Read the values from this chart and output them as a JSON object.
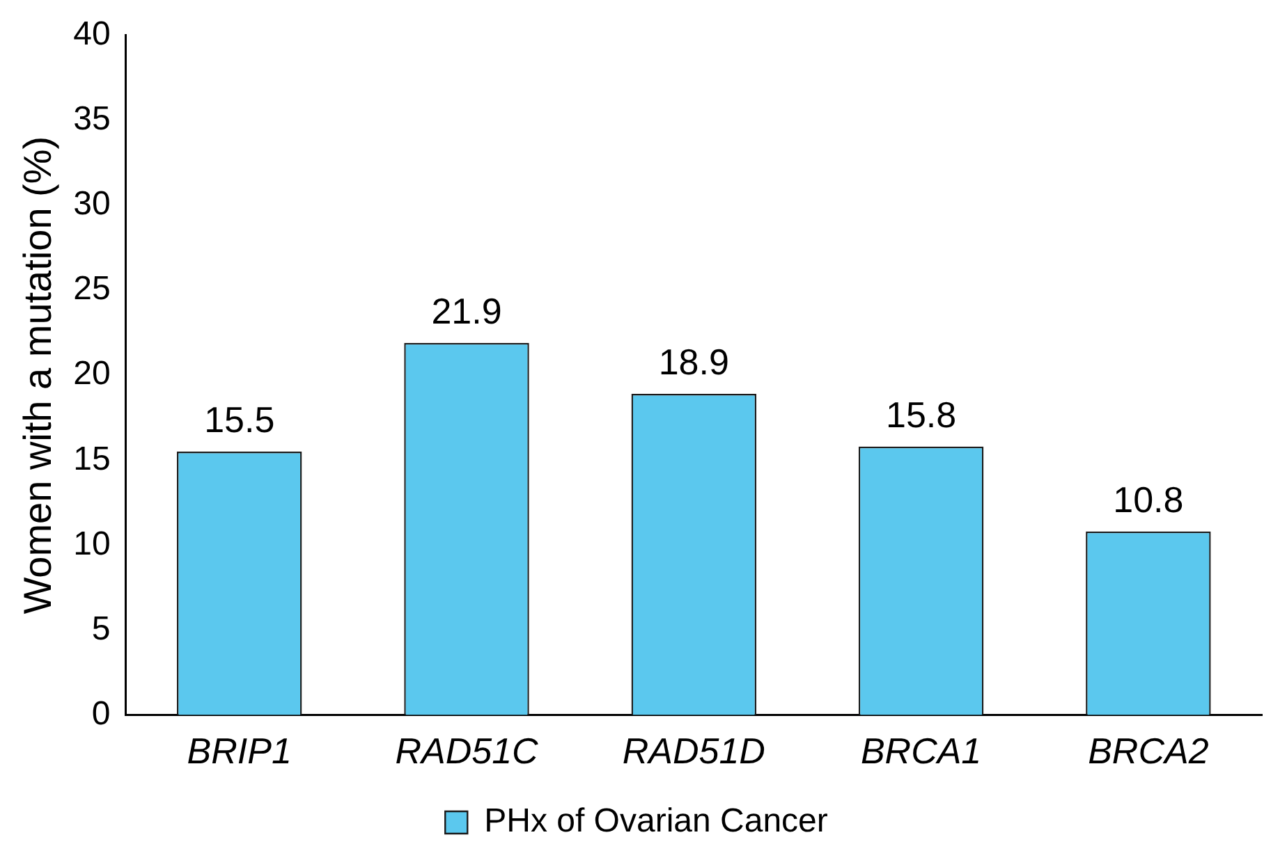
{
  "chart_data": {
    "type": "bar",
    "ylabel": "Women with a mutation (%)",
    "categories": [
      "BRIP1",
      "RAD51C",
      "RAD51D",
      "BRCA1",
      "BRCA2"
    ],
    "series": [
      {
        "name": "PHx of Ovarian Cancer",
        "color": "#5bc8ee",
        "values": [
          15.5,
          21.9,
          18.9,
          15.8,
          10.8
        ]
      }
    ],
    "ylim": [
      0,
      40
    ],
    "yticks": [
      0,
      5,
      10,
      15,
      20,
      25,
      30,
      35,
      40
    ],
    "grid": false,
    "legend": "bottom",
    "data_labels": true
  }
}
